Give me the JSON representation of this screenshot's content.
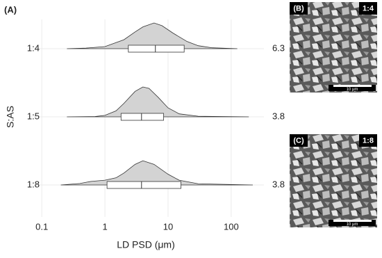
{
  "chart_data": {
    "type": "ridgeline",
    "title": "(A)",
    "xlabel": "LD PSD (μm)",
    "ylabel": "S:AS",
    "xscale": "log",
    "xlim": [
      0.06,
      330
    ],
    "xticks": [
      0.1,
      1,
      10,
      100
    ],
    "grid": true,
    "fill_color": "#d3d3d3",
    "series": [
      {
        "name": "1:4",
        "median": 6.3,
        "q1": 2.35,
        "q3": 18,
        "x": [
          0.25,
          0.5,
          1,
          2,
          3,
          4,
          6,
          8,
          12,
          20,
          30,
          50,
          125
        ],
        "values": [
          0,
          0.02,
          0.07,
          0.3,
          0.56,
          0.73,
          0.86,
          0.77,
          0.52,
          0.24,
          0.1,
          0.03,
          0
        ]
      },
      {
        "name": "1:5",
        "median": 3.8,
        "q1": 1.8,
        "q3": 8.5,
        "x": [
          0.25,
          0.7,
          1,
          1.5,
          2,
          3,
          4,
          5,
          7,
          10,
          15,
          30,
          190
        ],
        "values": [
          0,
          0.01,
          0.05,
          0.2,
          0.45,
          0.85,
          1,
          0.95,
          0.65,
          0.3,
          0.1,
          0.02,
          0
        ]
      },
      {
        "name": "1:8",
        "median": 3.8,
        "q1": 1.08,
        "q3": 16,
        "x": [
          0.2,
          0.4,
          0.6,
          1,
          1.5,
          2,
          3,
          4,
          6,
          10,
          15,
          30,
          220
        ],
        "values": [
          0,
          0.05,
          0.12,
          0.16,
          0.24,
          0.4,
          0.69,
          0.81,
          0.69,
          0.36,
          0.16,
          0.04,
          0
        ]
      }
    ]
  },
  "images": [
    {
      "label": "(B)",
      "ratio": "1:4",
      "scale": "10 μm"
    },
    {
      "label": "(C)",
      "ratio": "1:8",
      "scale": "10 μm"
    }
  ]
}
